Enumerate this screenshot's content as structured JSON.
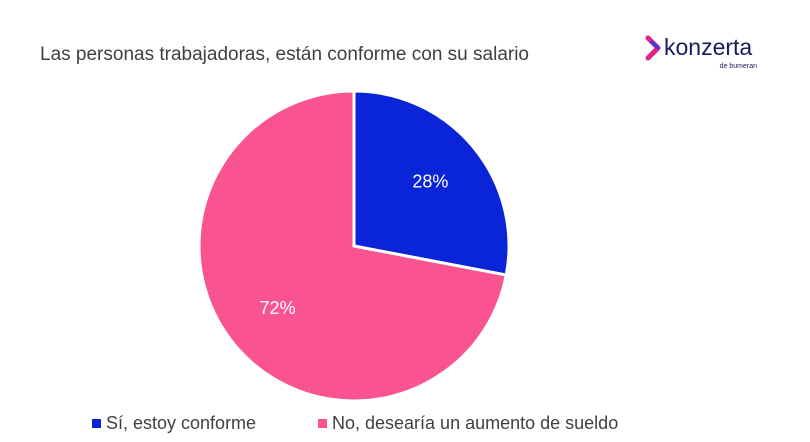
{
  "chart_data": {
    "type": "pie",
    "title": "Las personas trabajadoras, están conforme con su salario",
    "categories": [
      "Sí, estoy conforme",
      "No, desearía un aumento de sueldo"
    ],
    "values": [
      28,
      72
    ],
    "value_labels": [
      "28%",
      "72%"
    ],
    "colors": [
      "#0a24d8",
      "#f9548f"
    ]
  },
  "logo": {
    "name": "konzerta",
    "tagline": "de bumeran"
  }
}
